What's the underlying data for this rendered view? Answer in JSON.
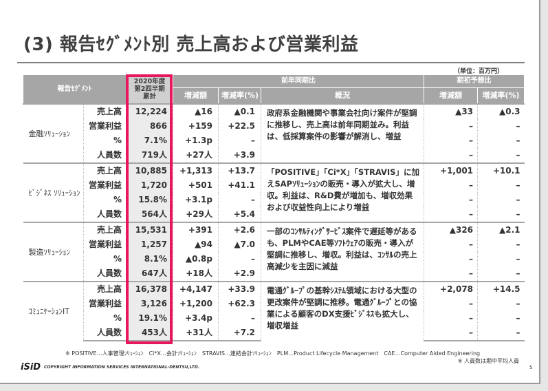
{
  "title": "(3) 報告ｾｸﾞﾒﾝﾄ別 売上高および営業利益",
  "unit": "（単位：百万円）",
  "header": {
    "segment": "報告ｾｸﾞﾒﾝﾄ",
    "fy": [
      "2020年度",
      "第2四半期",
      "累計"
    ],
    "yoy": "前年同期比",
    "plan": "期初予想比",
    "diff": "増減額",
    "rate": "増減率(%)",
    "summary": "概況"
  },
  "segments": [
    {
      "name": "金融ｿﾘｭｰｼｮﾝ",
      "desc": "政府系金融機関や事業会社向け案件が堅調に推移し、売上高は前年同期並み。利益は、低採算案件の影響が解消し、増益",
      "rows": [
        {
          "item": "売上高",
          "fy": "12,224",
          "diff": "▲16",
          "rate": "▲0.1",
          "pdiff": "▲33",
          "prate": "▲0.3"
        },
        {
          "item": "営業利益",
          "fy": "866",
          "diff": "+159",
          "rate": "+22.5",
          "pdiff": "–",
          "prate": "–"
        },
        {
          "item": "%",
          "fy": "7.1%",
          "diff": "+1.3p",
          "rate": "–",
          "pdiff": "–",
          "prate": "–"
        },
        {
          "item": "人員数",
          "fy": "719人",
          "diff": "+27人",
          "rate": "+3.9",
          "pdiff": "–",
          "prate": "–"
        }
      ]
    },
    {
      "name": "ﾋﾞｼﾞﾈｽ ｿﾘｭｰｼｮﾝ",
      "desc": "「POSITIVE」「Ci*X」「STRAVIS」に加えSAPｿﾘｭｰｼｮﾝの販売・導入が拡大し、増収。利益は、R&D費が増加も、増収効果および収益性向上により増益",
      "rows": [
        {
          "item": "売上高",
          "fy": "10,885",
          "diff": "+1,313",
          "rate": "+13.7",
          "pdiff": "+1,001",
          "prate": "+10.1"
        },
        {
          "item": "営業利益",
          "fy": "1,720",
          "diff": "+501",
          "rate": "+41.1",
          "pdiff": "–",
          "prate": "–"
        },
        {
          "item": "%",
          "fy": "15.8%",
          "diff": "+3.1p",
          "rate": "–",
          "pdiff": "–",
          "prate": "–"
        },
        {
          "item": "人員数",
          "fy": "564人",
          "diff": "+29人",
          "rate": "+5.4",
          "pdiff": "–",
          "prate": "–"
        }
      ]
    },
    {
      "name": "製造ｿﾘｭｰｼｮﾝ",
      "desc": "一部のｺﾝｻﾙﾃｨﾝｸﾞｻｰﾋﾞｽ案件で遅延等があるも、PLMやCAE等ｿﾌﾄｳｪｱの販売・導入が堅調に推移し、増収。利益は、ｺﾝｻﾙの売上高減少を主因に減益",
      "rows": [
        {
          "item": "売上高",
          "fy": "15,531",
          "diff": "+391",
          "rate": "+2.6",
          "pdiff": "▲326",
          "prate": "▲2.1"
        },
        {
          "item": "営業利益",
          "fy": "1,257",
          "diff": "▲94",
          "rate": "▲7.0",
          "pdiff": "–",
          "prate": "–"
        },
        {
          "item": "%",
          "fy": "8.1%",
          "diff": "▲0.8p",
          "rate": "–",
          "pdiff": "–",
          "prate": "–"
        },
        {
          "item": "人員数",
          "fy": "647人",
          "diff": "+18人",
          "rate": "+2.9",
          "pdiff": "–",
          "prate": "–"
        }
      ]
    },
    {
      "name": "ｺﾐｭﾆｹｰｼｮﾝIT",
      "desc": "電通ｸﾞﾙｰﾌﾟの基幹ｼｽﾃﾑ領域における大型の更改案件が堅調に推移。電通ｸﾞﾙｰﾌﾟとの協業による顧客のDX支援ﾋﾞｼﾞﾈｽも拡大し、増収増益",
      "rows": [
        {
          "item": "売上高",
          "fy": "16,378",
          "diff": "+4,147",
          "rate": "+33.9",
          "pdiff": "+2,078",
          "prate": "+14.5"
        },
        {
          "item": "営業利益",
          "fy": "3,126",
          "diff": "+1,200",
          "rate": "+62.3",
          "pdiff": "–",
          "prate": "–"
        },
        {
          "item": "%",
          "fy": "19.1%",
          "diff": "+3.4p",
          "rate": "–",
          "pdiff": "–",
          "prate": "–"
        },
        {
          "item": "人員数",
          "fy": "453人",
          "diff": "+31人",
          "rate": "+7.2",
          "pdiff": "–",
          "prate": "–"
        }
      ]
    }
  ],
  "footnote": "※ POSITIVE…人事管理ｿﾘｭｰｼｮﾝ　Ci*X…会計ｿﾘｭｰｼｮﾝ　STRAVIS…連結会計ｿﾘｭｰｼｮﾝ　PLM…Product Lifecycle Management　CAE…Computer Aided Engineering",
  "footnote2": "※ 人員数は期中平均人員",
  "logo": "iSiD",
  "copyright": "COPYRIGHT  INFORMATION SERVICES INTERNATIONAL-DENTSU,LTD.",
  "page": "5"
}
